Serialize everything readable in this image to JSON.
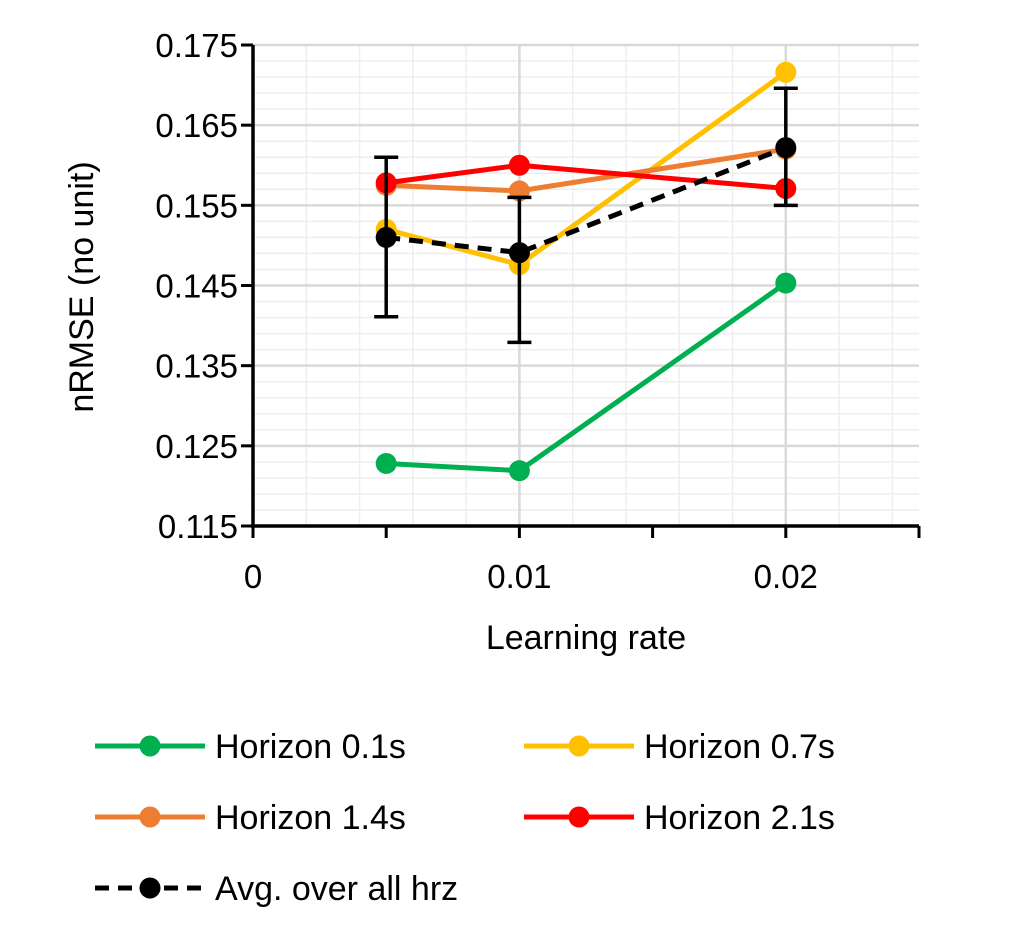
{
  "chart_data": {
    "type": "line",
    "title": "",
    "xlabel": "Learning rate",
    "ylabel": "nRMSE (no unit)",
    "xlim": [
      0,
      0.025
    ],
    "ylim": [
      0.115,
      0.175
    ],
    "x_ticks": [
      "0",
      "0.01",
      "0.02"
    ],
    "x_tick_values": [
      0,
      0.01,
      0.02
    ],
    "y_ticks": [
      "0.115",
      "0.125",
      "0.135",
      "0.145",
      "0.155",
      "0.165",
      "0.175"
    ],
    "y_tick_values": [
      0.115,
      0.125,
      0.135,
      0.145,
      0.155,
      0.165,
      0.175
    ],
    "grid": true,
    "x": [
      0.005,
      0.01,
      0.02
    ],
    "series": [
      {
        "name": "Horizon 0.1s",
        "color": "#00B050",
        "dashed": false,
        "values": [
          0.1228,
          0.1219,
          0.1453
        ]
      },
      {
        "name": "Horizon 0.7s",
        "color": "#FFC000",
        "dashed": false,
        "values": [
          0.152,
          0.1476,
          0.1716
        ]
      },
      {
        "name": "Horizon 1.4s",
        "color": "#ED7D31",
        "dashed": false,
        "values": [
          0.1575,
          0.1568,
          0.162
        ]
      },
      {
        "name": "Horizon 2.1s",
        "color": "#FF0000",
        "dashed": false,
        "values": [
          0.1578,
          0.16,
          0.1571
        ]
      },
      {
        "name": "Avg. over all hrz",
        "color": "#000000",
        "dashed": true,
        "values": [
          0.151,
          0.1491,
          0.1622
        ],
        "error_low": [
          0.1411,
          0.1379,
          0.155
        ],
        "error_high": [
          0.161,
          0.156,
          0.1696
        ]
      }
    ],
    "legend_position": "bottom"
  }
}
